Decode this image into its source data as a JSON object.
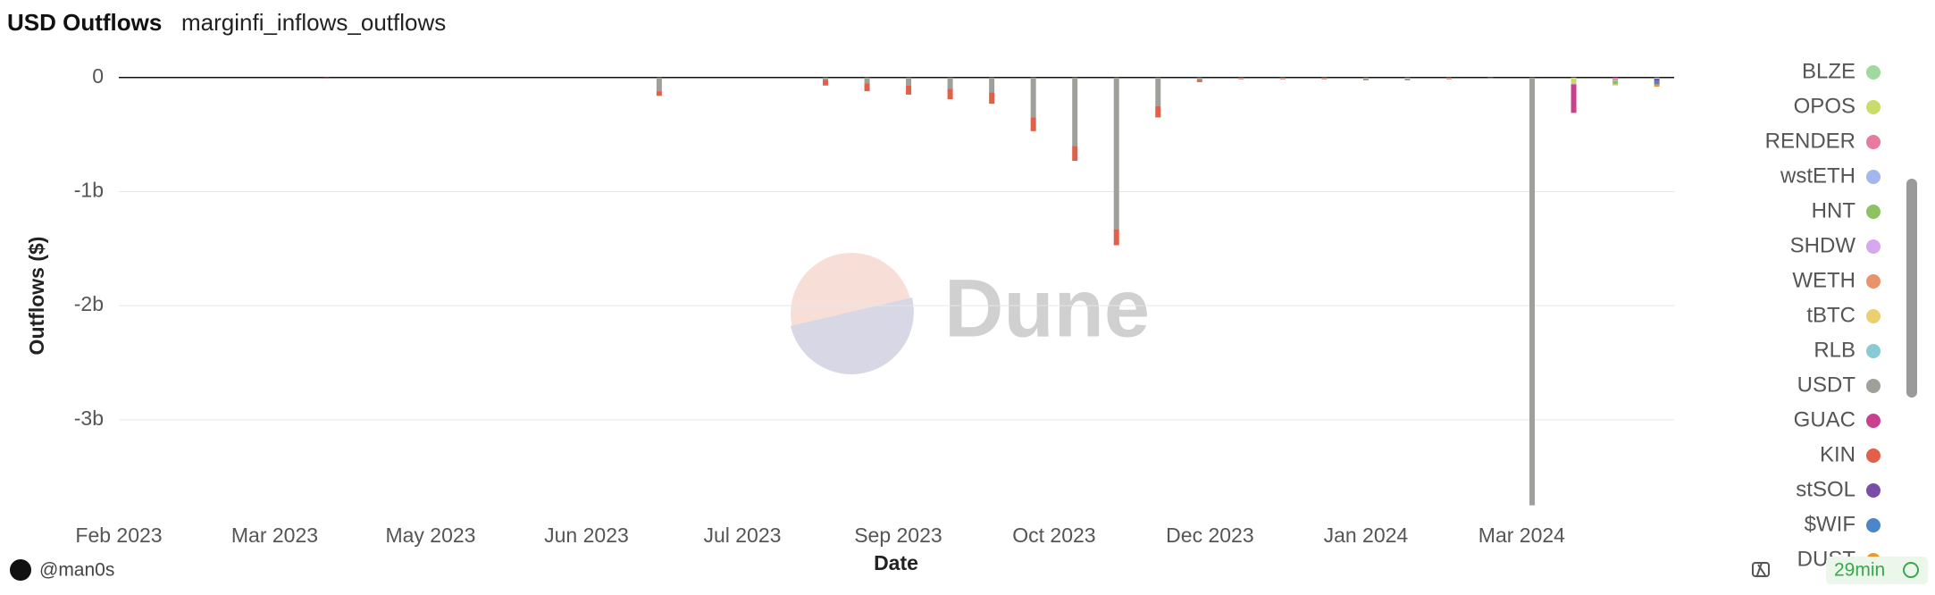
{
  "chart_data": {
    "type": "bar",
    "stacked": true,
    "title": "USD Outflows",
    "subtitle": "marginfi_inflows_outflows",
    "xlabel": "Date",
    "ylabel": "Outflows ($)",
    "x": [
      0,
      12,
      24,
      36,
      48,
      60,
      72,
      84,
      96,
      108,
      120,
      132,
      144,
      156,
      168,
      180,
      192,
      204,
      216,
      228,
      240,
      252,
      264,
      276,
      288,
      300,
      312,
      324,
      336,
      348,
      360,
      372,
      384,
      396,
      408,
      420,
      432,
      444
    ],
    "xlim": [
      0,
      449
    ],
    "xticks": [
      {
        "value": 0,
        "label": "Feb 2023"
      },
      {
        "value": 45,
        "label": "Mar 2023"
      },
      {
        "value": 90,
        "label": "May 2023"
      },
      {
        "value": 135,
        "label": "Jun 2023"
      },
      {
        "value": 180,
        "label": "Jul 2023"
      },
      {
        "value": 225,
        "label": "Sep 2023"
      },
      {
        "value": 270,
        "label": "Oct 2023"
      },
      {
        "value": 315,
        "label": "Dec 2023"
      },
      {
        "value": 360,
        "label": "Jan 2024"
      },
      {
        "value": 405,
        "label": "Mar 2024"
      }
    ],
    "ylim": [
      -3.8,
      0.1
    ],
    "yticks": [
      0,
      {
        "value": -1,
        "label": "-1b"
      },
      {
        "value": -2,
        "label": "-2b"
      },
      {
        "value": -3,
        "label": "-3b"
      }
    ],
    "grid": true,
    "series": [
      {
        "name": "BLZE",
        "color": "#9ed99e",
        "values": [
          0,
          0,
          0,
          0,
          0,
          0,
          0,
          0,
          0,
          0,
          0,
          0,
          0,
          0,
          0,
          0,
          0,
          0,
          0,
          0,
          0,
          0,
          0,
          0,
          0,
          0,
          0,
          0,
          0,
          0,
          0,
          0,
          0,
          0,
          0,
          0,
          0,
          -0.01
        ]
      },
      {
        "name": "OPOS",
        "color": "#c9dc6a",
        "values": [
          0,
          0,
          0,
          0,
          0,
          0,
          0,
          0,
          0,
          0,
          0,
          0,
          0,
          0,
          0,
          0,
          0,
          0,
          0,
          0,
          0,
          0,
          0,
          0,
          0,
          0,
          0,
          0,
          0,
          0,
          0,
          0,
          0,
          0,
          0,
          -0.05,
          0,
          0
        ]
      },
      {
        "name": "RENDER",
        "color": "#e87a9c",
        "values": [
          0,
          0,
          0,
          0,
          0,
          0,
          0,
          0,
          0,
          0,
          0,
          0,
          0,
          0,
          0,
          0,
          0,
          0,
          0,
          0,
          0,
          0,
          0,
          0,
          0,
          0,
          0,
          0,
          0,
          0,
          0,
          0,
          0,
          0,
          0,
          0,
          -0.02,
          0
        ]
      },
      {
        "name": "wstETH",
        "color": "#a3b6ee",
        "values": [
          0,
          0,
          0,
          0,
          0,
          0,
          0,
          0,
          0,
          0,
          0,
          0,
          0,
          0,
          0,
          0,
          0,
          0,
          0,
          0,
          0,
          0,
          0,
          0,
          0,
          0,
          0,
          0,
          0,
          0,
          0,
          0,
          0,
          0,
          0,
          0,
          -0.01,
          0
        ]
      },
      {
        "name": "HNT",
        "color": "#8cc260",
        "values": [
          0,
          0,
          0,
          0,
          0,
          0,
          0,
          0,
          0,
          0,
          0,
          0,
          0,
          0,
          0,
          0,
          0,
          0,
          0,
          0,
          0,
          0,
          0,
          0,
          0,
          0,
          0,
          0,
          0,
          0,
          0,
          0,
          0,
          0,
          0,
          0,
          -0.03,
          0
        ]
      },
      {
        "name": "SHDW",
        "color": "#d8a8ee",
        "values": [
          0,
          0,
          0,
          0,
          0,
          0,
          0,
          0,
          0,
          0,
          0,
          0,
          0,
          0,
          0,
          0,
          0,
          0,
          0,
          0,
          0,
          0,
          0,
          0,
          0,
          0,
          0,
          0,
          0,
          0,
          0,
          0,
          0,
          0,
          0,
          -0.01,
          0,
          0
        ]
      },
      {
        "name": "WETH",
        "color": "#e8946a",
        "values": [
          0,
          0,
          0,
          0,
          0,
          0,
          0,
          0,
          0,
          0,
          0,
          0,
          0,
          0,
          0,
          0,
          0,
          0,
          0,
          0,
          0,
          0,
          0,
          0,
          0,
          0,
          0,
          0,
          0,
          0,
          -0.01,
          0,
          0,
          0,
          0,
          0,
          0,
          0
        ]
      },
      {
        "name": "tBTC",
        "color": "#eccf6e",
        "values": [
          0,
          0,
          0,
          0,
          0,
          0,
          0,
          0,
          0,
          0,
          0,
          0,
          0,
          0,
          0,
          0,
          0,
          0,
          0,
          0,
          0,
          0,
          0,
          0,
          0,
          0,
          0,
          0,
          0,
          0,
          0,
          0,
          0,
          0,
          0,
          0,
          -0.01,
          0
        ]
      },
      {
        "name": "RLB",
        "color": "#86ccd2",
        "values": [
          0,
          0,
          0,
          0,
          0,
          0,
          0,
          0,
          0,
          0,
          0,
          0,
          0,
          0,
          0,
          0,
          0,
          0,
          0,
          0,
          0,
          0,
          0,
          0,
          0,
          0,
          0,
          0,
          0,
          0,
          0,
          -0.01,
          0,
          0,
          0,
          0,
          0,
          0
        ]
      },
      {
        "name": "USDT",
        "color": "#a0a09a",
        "values": [
          0,
          0,
          0,
          0,
          0,
          0,
          0,
          0,
          0,
          0,
          0,
          0,
          0,
          -0.12,
          0,
          0,
          0,
          -0.02,
          -0.05,
          -0.07,
          -0.1,
          -0.13,
          -0.35,
          -0.6,
          -1.33,
          -0.25,
          -0.02,
          -0.01,
          -0.01,
          -0.01,
          -0.01,
          -0.01,
          -0.01,
          -0.01,
          -3.75,
          0,
          0,
          0
        ]
      },
      {
        "name": "GUAC",
        "color": "#c8408e",
        "values": [
          0,
          0,
          0,
          0,
          0,
          0,
          0,
          0,
          0,
          0,
          0,
          0,
          0,
          0,
          0,
          0,
          0,
          0,
          0,
          0,
          0,
          0,
          0,
          0,
          0,
          0,
          0,
          0,
          0,
          0,
          0,
          0,
          0,
          0,
          0,
          -0.25,
          0,
          0
        ]
      },
      {
        "name": "KIN",
        "color": "#e0604a",
        "values": [
          0,
          0,
          0,
          0,
          0,
          -0.01,
          0,
          0,
          0,
          0,
          0,
          0,
          0,
          -0.04,
          0,
          0,
          0,
          -0.05,
          -0.07,
          -0.08,
          -0.09,
          -0.1,
          -0.12,
          -0.13,
          -0.14,
          -0.1,
          -0.02,
          -0.005,
          -0.005,
          -0.005,
          -0.005,
          -0.005,
          -0.005,
          0,
          0,
          0,
          0,
          0
        ]
      },
      {
        "name": "stSOL",
        "color": "#7a4ea8",
        "values": [
          0,
          0,
          0,
          0,
          0,
          0,
          0,
          0,
          0,
          0,
          0,
          0,
          0,
          0,
          0,
          0,
          0,
          0,
          0,
          0,
          0,
          0,
          0,
          0,
          0,
          0,
          0,
          0,
          0,
          0,
          0,
          0,
          0,
          0,
          0,
          0,
          0,
          -0.02
        ]
      },
      {
        "name": "$WIF",
        "color": "#4a86c8",
        "values": [
          0,
          0,
          0,
          0,
          0,
          0,
          0,
          0,
          0,
          0,
          0,
          0,
          0,
          0,
          0,
          0,
          0,
          0,
          0,
          0,
          0,
          0,
          0,
          0,
          0,
          0,
          0,
          0,
          0,
          0,
          0,
          0,
          0,
          0,
          0,
          0,
          0,
          -0.03
        ]
      },
      {
        "name": "DUST",
        "color": "#e89a2a",
        "values": [
          0,
          0,
          0,
          0,
          0,
          0,
          0,
          0,
          0,
          0,
          0,
          0,
          0,
          0,
          0,
          0,
          0,
          0,
          0,
          0,
          0,
          0,
          0,
          0,
          0,
          0,
          0,
          0,
          0,
          0,
          0,
          0,
          0,
          0,
          0,
          0,
          0,
          -0.02
        ]
      }
    ]
  },
  "watermark": "Dune",
  "footer": {
    "author": "@man0s",
    "refreshed": "29min"
  }
}
